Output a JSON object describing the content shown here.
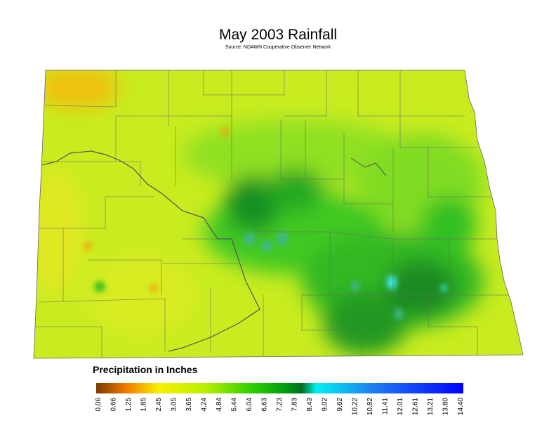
{
  "title": "May 2003 Rainfall",
  "subtitle": "Source: NDAWN Cooperative Observer Network",
  "legend": {
    "title": "Precipitation in Inches",
    "ticks": [
      "0.06",
      "0.66",
      "1.25",
      "1.85",
      "2.45",
      "3.05",
      "3.65",
      "4.24",
      "4.84",
      "5.44",
      "6.04",
      "6.63",
      "7.23",
      "7.83",
      "8.43",
      "9.02",
      "9.62",
      "10.22",
      "10.82",
      "11.41",
      "12.01",
      "12.61",
      "13.21",
      "13.80",
      "14.40"
    ]
  }
}
